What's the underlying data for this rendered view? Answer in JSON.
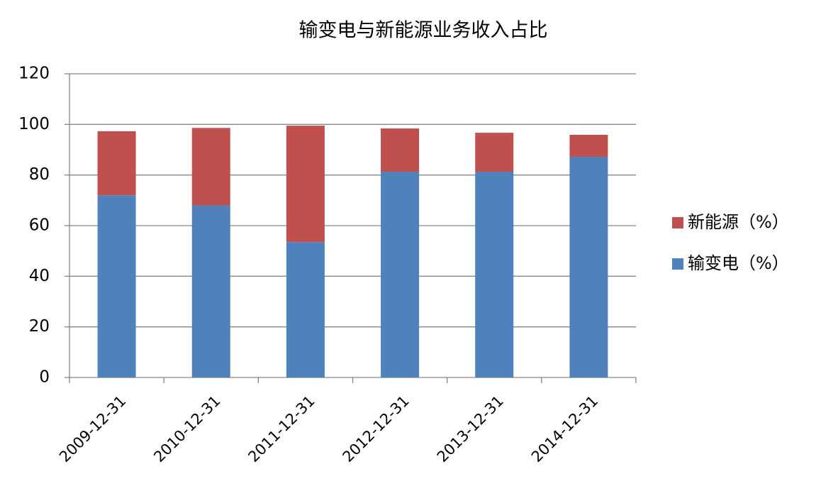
{
  "chart_data": {
    "type": "stacked_bar",
    "title": "输变电与新能源业务收入占比",
    "categories": [
      "2009-12-31",
      "2010-12-31",
      "2011-12-31",
      "2012-12-31",
      "2013-12-31",
      "2014-12-31"
    ],
    "series": [
      {
        "name": "输变电（%）",
        "color": "#4f81bd",
        "values": [
          72,
          68,
          53.5,
          81.3,
          81.3,
          87.2
        ]
      },
      {
        "name": "新能源（%）",
        "color": "#c0504d",
        "values": [
          25.3,
          30.6,
          46,
          17.1,
          15.4,
          8.7
        ]
      }
    ],
    "ylim": [
      0,
      120
    ],
    "yticks": [
      0,
      20,
      40,
      60,
      80,
      100,
      120
    ],
    "grid": true,
    "legend": "right"
  }
}
